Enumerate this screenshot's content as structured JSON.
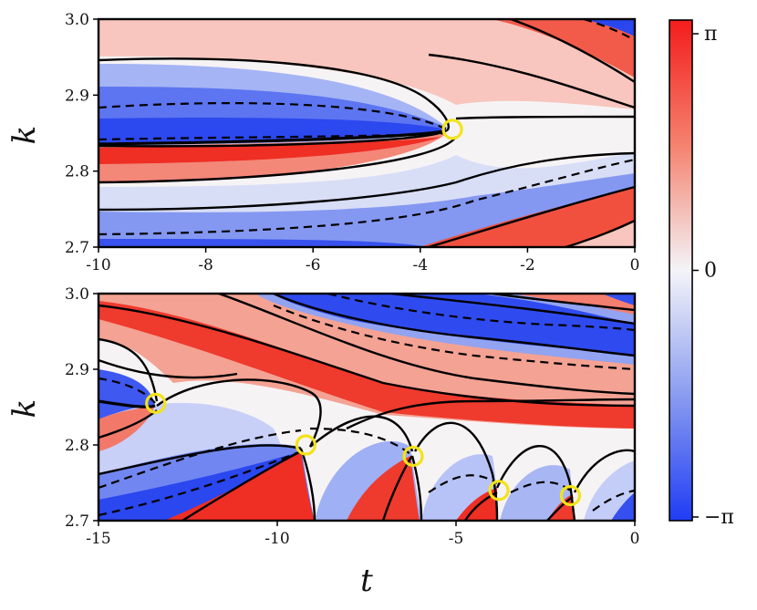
{
  "chart_data": [
    {
      "type": "heatmap",
      "title": "",
      "xlabel": "",
      "ylabel": "k",
      "xlim": [
        -10,
        0
      ],
      "ylim": [
        2.7,
        3.0
      ],
      "x_ticks": [
        "-10",
        "-8",
        "-6",
        "-4",
        "-2",
        "0"
      ],
      "y_ticks": [
        "2.7",
        "2.8",
        "2.9",
        "3.0"
      ],
      "grid": false,
      "colormap": "diverging blue-white-red (coolwarm), phase in [-π, π]",
      "contours": "solid black (phase 0 / ±π boundaries) and dashed black lines",
      "markers": [
        {
          "t": -3.4,
          "k": 2.855,
          "shape": "yellow circle"
        }
      ]
    },
    {
      "type": "heatmap",
      "title": "",
      "xlabel": "t",
      "ylabel": "k",
      "xlim": [
        -15,
        0
      ],
      "ylim": [
        2.7,
        3.0
      ],
      "x_ticks": [
        "-15",
        "-10",
        "-5",
        "0"
      ],
      "y_ticks": [
        "2.7",
        "2.8",
        "2.9",
        "3.0"
      ],
      "grid": false,
      "colormap": "diverging blue-white-red (coolwarm), phase in [-π, π]",
      "contours": "solid black and dashed black lines",
      "markers": [
        {
          "t": -13.4,
          "k": 2.855,
          "shape": "yellow circle"
        },
        {
          "t": -9.2,
          "k": 2.8,
          "shape": "yellow circle"
        },
        {
          "t": -6.2,
          "k": 2.785,
          "shape": "yellow circle"
        },
        {
          "t": -3.8,
          "k": 2.74,
          "shape": "yellow circle"
        },
        {
          "t": -1.8,
          "k": 2.733,
          "shape": "yellow circle"
        }
      ]
    }
  ],
  "colorbar": {
    "ticks": [
      "π",
      "0",
      "−π"
    ],
    "values": [
      3.14159,
      0,
      -3.14159
    ],
    "colors": {
      "low": "#1f3cf5",
      "mid": "#f4f4f8",
      "high": "#f41c1c"
    }
  },
  "marker_color": "#f3e317",
  "contour_color": "#000000"
}
